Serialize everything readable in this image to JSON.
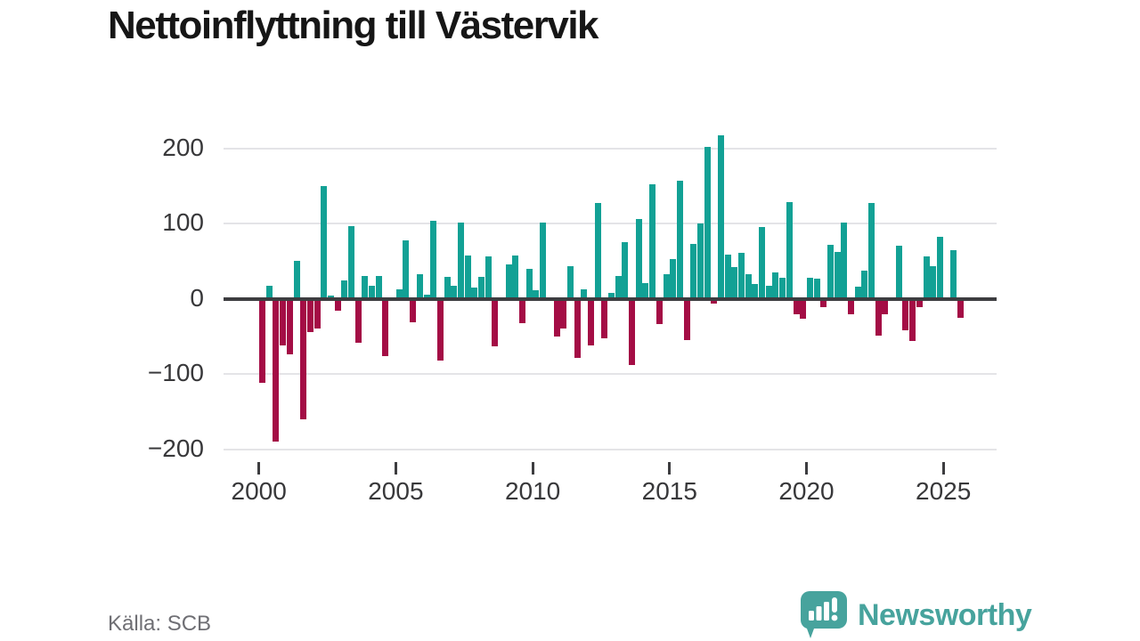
{
  "title": "Nettoinflyttning till Västervik",
  "source_note": "Källa: SCB",
  "logo": {
    "text": "Newsworthy"
  },
  "colors": {
    "positive": "#12a195",
    "negative": "#a40d45",
    "axis": "#3d3d40",
    "grid": "#e4e4e7",
    "tick_text": "#38383a",
    "title_text": "#161616",
    "muted_text": "#6f6f74",
    "logo": "#47a39d"
  },
  "chart_data": {
    "type": "bar",
    "title": "Nettoinflyttning till Västervik",
    "x_unit": "quarter",
    "start_year": 2000,
    "start_quarter": 1,
    "values": [
      -112,
      18,
      -190,
      -62,
      -74,
      50,
      -160,
      -44,
      -40,
      150,
      5,
      -16,
      24,
      97,
      -58,
      31,
      18,
      31,
      -76,
      0,
      13,
      78,
      -31,
      33,
      6,
      104,
      -82,
      29,
      18,
      101,
      58,
      15,
      29,
      56,
      -63,
      0,
      46,
      58,
      -32,
      40,
      11,
      102,
      0,
      -50,
      -40,
      43,
      -79,
      13,
      -62,
      128,
      -53,
      8,
      30,
      75,
      -88,
      106,
      21,
      152,
      -33,
      33,
      53,
      157,
      -55,
      73,
      100,
      202,
      -6,
      218,
      59,
      42,
      61,
      33,
      20,
      95,
      17,
      35,
      28,
      129,
      -20,
      -26,
      28,
      27,
      -11,
      72,
      62,
      101,
      -20,
      16,
      37,
      127,
      -49,
      -20,
      0,
      71,
      -42,
      -56,
      -11,
      57,
      44,
      83,
      0,
      65,
      -25
    ],
    "x_ticks": [
      2000,
      2005,
      2010,
      2015,
      2020,
      2025
    ],
    "x_tick_labels": [
      "2000",
      "2005",
      "2010",
      "2015",
      "2020",
      "2025"
    ],
    "y_ticks": [
      200,
      100,
      0,
      -100,
      -200
    ],
    "y_tick_labels": [
      "200",
      "100",
      "0",
      "−100",
      "−200"
    ],
    "ylim": [
      -220,
      230
    ],
    "grid": true,
    "legend": null
  }
}
